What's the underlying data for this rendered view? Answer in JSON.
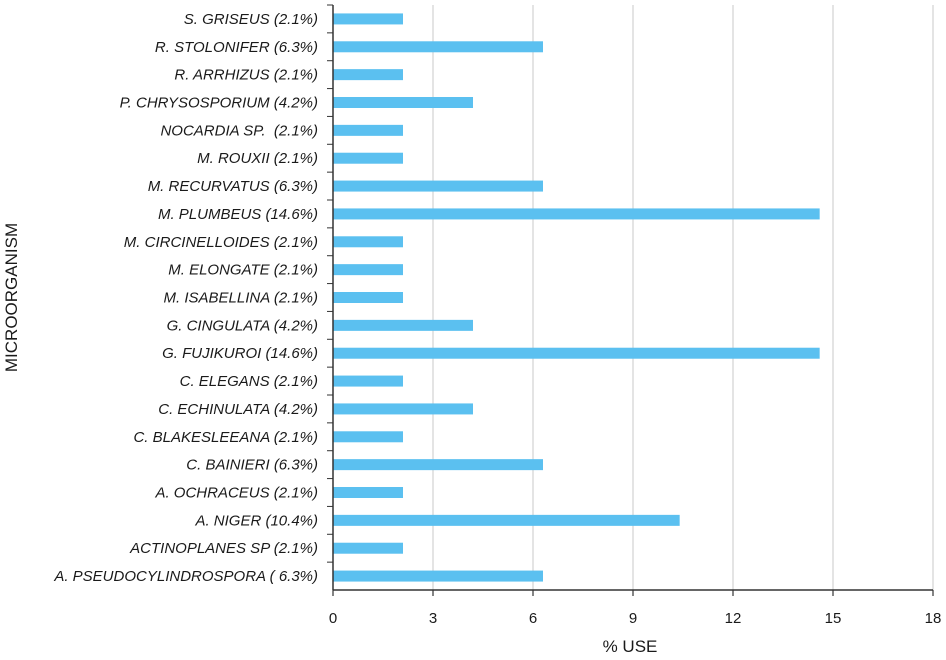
{
  "chart_data": {
    "type": "bar",
    "orientation": "horizontal",
    "title": "",
    "xlabel": "% USE",
    "ylabel": "MICROORGANISM",
    "xlim": [
      0,
      18
    ],
    "xticks": [
      0,
      3,
      6,
      9,
      12,
      15,
      18
    ],
    "grid": "vertical",
    "bar_color": "#5bc0f0",
    "categories": [
      "S. GRISEUS (2.1%)",
      "R. STOLONIFER (6.3%)",
      "R. ARRHIZUS (2.1%)",
      "P. CHRYSOSPORIUM (4.2%)",
      "NOCARDIA SP.  (2.1%)",
      "M. ROUXII (2.1%)",
      "M. RECURVATUS (6.3%)",
      "M. PLUMBEUS (14.6%)",
      "M. CIRCINELLOIDES (2.1%)",
      "M. ELONGATE (2.1%)",
      "M. ISABELLINA (2.1%)",
      "G. CINGULATA (4.2%)",
      "G. FUJIKUROI (14.6%)",
      "C. ELEGANS (2.1%)",
      "C. ECHINULATA (4.2%)",
      "C. BLAKESLEEANA (2.1%)",
      "C. BAINIERI (6.3%)",
      "A. OCHRACEUS (2.1%)",
      "A. NIGER (10.4%)",
      "ACTINOPLANES SP (2.1%)",
      "A. PSEUDOCYLINDROSPORA ( 6.3%)"
    ],
    "values": [
      2.1,
      6.3,
      2.1,
      4.2,
      2.1,
      2.1,
      6.3,
      14.6,
      2.1,
      2.1,
      2.1,
      4.2,
      14.6,
      2.1,
      4.2,
      2.1,
      6.3,
      2.1,
      10.4,
      2.1,
      6.3
    ]
  }
}
